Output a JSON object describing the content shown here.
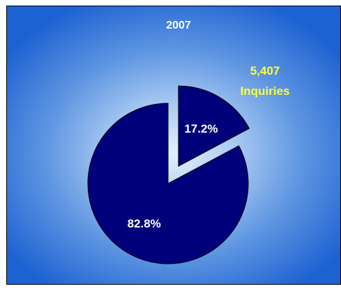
{
  "chart_data": {
    "type": "pie",
    "title": "2007",
    "slices": [
      {
        "label": "17.2%",
        "value": 17.2,
        "exploded": true
      },
      {
        "label": "82.8%",
        "value": 82.8,
        "exploded": false
      }
    ],
    "annotation": [
      "5,407",
      "Inquiries"
    ],
    "colors": {
      "slice_fill": "#00007a",
      "slice_stroke": "#000000",
      "label_text": "#ffffff",
      "annotation_text": "#ffff33",
      "title_text": "#ffffff"
    },
    "legend": "none"
  }
}
